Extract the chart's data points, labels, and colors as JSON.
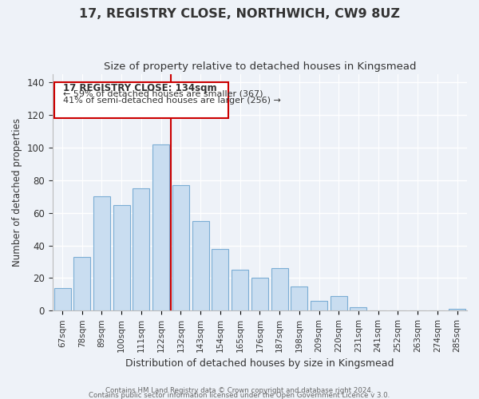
{
  "title": "17, REGISTRY CLOSE, NORTHWICH, CW9 8UZ",
  "subtitle": "Size of property relative to detached houses in Kingsmead",
  "xlabel": "Distribution of detached houses by size in Kingsmead",
  "ylabel": "Number of detached properties",
  "bar_labels": [
    "67sqm",
    "78sqm",
    "89sqm",
    "100sqm",
    "111sqm",
    "122sqm",
    "132sqm",
    "143sqm",
    "154sqm",
    "165sqm",
    "176sqm",
    "187sqm",
    "198sqm",
    "209sqm",
    "220sqm",
    "231sqm",
    "241sqm",
    "252sqm",
    "263sqm",
    "274sqm",
    "285sqm"
  ],
  "bar_heights": [
    14,
    33,
    70,
    65,
    75,
    102,
    77,
    55,
    38,
    25,
    20,
    26,
    15,
    6,
    9,
    2,
    0,
    0,
    0,
    0,
    1
  ],
  "bar_color": "#c9ddf0",
  "bar_edge_color": "#7badd4",
  "vline_color": "#cc0000",
  "ylim": [
    0,
    145
  ],
  "yticks": [
    0,
    20,
    40,
    60,
    80,
    100,
    120,
    140
  ],
  "annotation_title": "17 REGISTRY CLOSE: 134sqm",
  "annotation_line1": "← 59% of detached houses are smaller (367)",
  "annotation_line2": "41% of semi-detached houses are larger (256) →",
  "box_edge_color": "#cc0000",
  "footer1": "Contains HM Land Registry data © Crown copyright and database right 2024.",
  "footer2": "Contains public sector information licensed under the Open Government Licence v 3.0.",
  "background_color": "#eef2f8",
  "grid_color": "#ffffff",
  "text_color": "#333333"
}
